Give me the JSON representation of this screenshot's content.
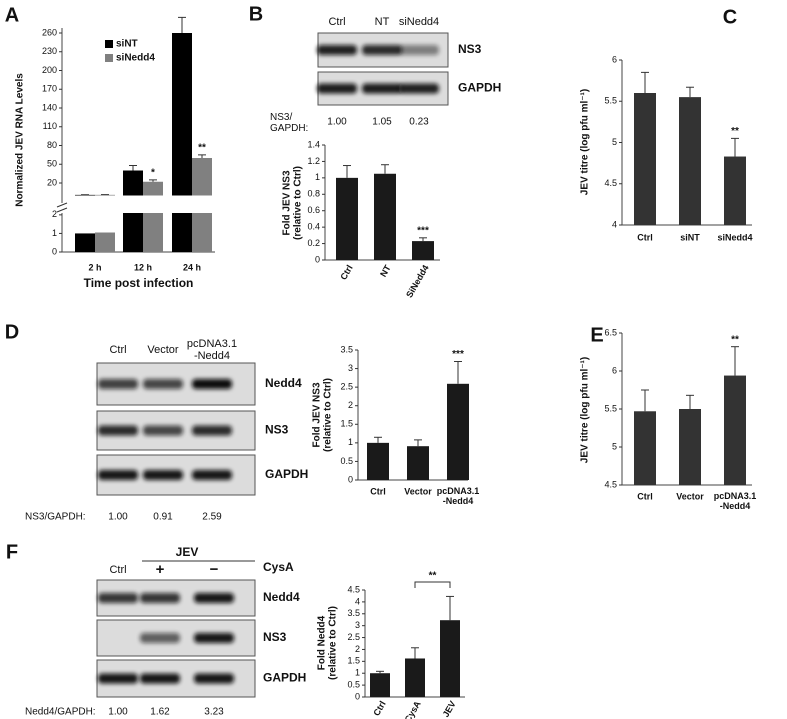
{
  "chart_data": [
    {
      "type": "bar",
      "panel": "A",
      "ylabel": "Normalized JEV RNA Levels",
      "xlabel": "Time post infection",
      "categories": [
        "2 h",
        "12 h",
        "24 h"
      ],
      "series": [
        {
          "name": "siNT",
          "color": "#000000",
          "values": [
            1.0,
            40,
            260
          ],
          "errors": [
            0.25,
            8,
            25
          ],
          "annotations": [
            null,
            null,
            null
          ]
        },
        {
          "name": "siNedd4",
          "color": "#808080",
          "values": [
            1.05,
            22,
            60
          ],
          "errors": [
            0.35,
            3,
            5
          ],
          "annotations": [
            null,
            "*",
            "**"
          ]
        }
      ],
      "broken_axis": {
        "lower": {
          "ylim": [
            0,
            2.1
          ],
          "yticks": [
            0,
            1,
            2
          ]
        },
        "upper": {
          "ylim": [
            -12,
            268
          ],
          "yticks": [
            20,
            50,
            80,
            110,
            140,
            170,
            200,
            230,
            260
          ]
        }
      }
    },
    {
      "type": "bar",
      "ylabel": "Fold JEV NS3\n(relative to Ctrl)",
      "categories": [
        "Ctrl",
        "NT",
        "SiNedd4"
      ],
      "values": [
        1.0,
        1.05,
        0.23
      ],
      "errors": [
        0.15,
        0.11,
        0.04
      ],
      "annotations": [
        null,
        null,
        "***"
      ],
      "color": "#1a1a1a",
      "ylim": [
        0,
        1.4
      ],
      "yticks": [
        0,
        0.2,
        0.4,
        0.6,
        0.8,
        1,
        1.2,
        1.4
      ]
    },
    {
      "type": "bar",
      "panel": "C",
      "ylabel": "JEV titre (log pfu ml⁻¹)",
      "categories": [
        "Ctrl",
        "siNT",
        "siNedd4"
      ],
      "values": [
        5.6,
        5.55,
        4.83
      ],
      "errors": [
        0.25,
        0.12,
        0.22
      ],
      "annotations": [
        null,
        null,
        "**"
      ],
      "color": "#333333",
      "ylim": [
        4,
        6
      ],
      "yticks": [
        4,
        4.5,
        5,
        5.5,
        6
      ]
    },
    {
      "type": "bar",
      "ylabel": "Fold JEV NS3\n(relative to Ctrl)",
      "categories": [
        "Ctrl",
        "Vector",
        "pcDNA3.1\n-Nedd4"
      ],
      "values": [
        1.0,
        0.91,
        2.59
      ],
      "errors": [
        0.15,
        0.17,
        0.6
      ],
      "annotations": [
        null,
        null,
        "***"
      ],
      "color": "#1a1a1a",
      "ylim": [
        0,
        3.5
      ],
      "yticks": [
        0,
        0.5,
        1,
        1.5,
        2,
        2.5,
        3,
        3.5
      ]
    },
    {
      "type": "bar",
      "panel": "E",
      "ylabel": "JEV titre (log pfu ml⁻¹)",
      "categories": [
        "Ctrl",
        "Vector",
        "pcDNA3.1\n-Nedd4"
      ],
      "values": [
        5.47,
        5.5,
        5.94
      ],
      "errors": [
        0.28,
        0.18,
        0.38
      ],
      "annotations": [
        null,
        null,
        "**"
      ],
      "color": "#333333",
      "ylim": [
        4.5,
        6.5
      ],
      "yticks": [
        4.5,
        5,
        5.5,
        6,
        6.5
      ]
    },
    {
      "type": "bar",
      "ylabel": "Fold Nedd4\n(relative to Ctrl)",
      "categories": [
        "Ctrl",
        "JEV+CysA",
        "JEV"
      ],
      "values": [
        1.0,
        1.62,
        3.23
      ],
      "errors": [
        0.08,
        0.45,
        1.0
      ],
      "annotations": [
        null,
        null,
        null
      ],
      "bracket_label": "**",
      "color": "#1a1a1a",
      "ylim": [
        0,
        4.5
      ],
      "yticks": [
        0,
        0.5,
        1,
        1.5,
        2,
        2.5,
        3,
        3.5,
        4,
        4.5
      ]
    }
  ],
  "blots": [
    {
      "panel": "B",
      "lanes": [
        "Ctrl",
        "NT",
        "siNedd4"
      ],
      "rows": [
        "NS3",
        "GAPDH"
      ],
      "ratio_label": "NS3/\nGAPDH:",
      "ratios": [
        "1.00",
        "1.05",
        "0.23"
      ]
    },
    {
      "panel": "D",
      "lanes": [
        "Ctrl",
        "Vector",
        "pcDNA3.1\n-Nedd4"
      ],
      "rows": [
        "Nedd4",
        "NS3",
        "GAPDH"
      ],
      "ratio_label": "NS3/GAPDH:",
      "ratios": [
        "1.00",
        "0.91",
        "2.59"
      ]
    },
    {
      "panel": "F",
      "group_label": "JEV",
      "treatment_label": "CysA",
      "lanes": [
        "Ctrl",
        "+",
        "−"
      ],
      "rows": [
        "Nedd4",
        "NS3",
        "GAPDH"
      ],
      "ratio_label": "Nedd4/GAPDH:",
      "ratios": [
        "1.00",
        "1.62",
        "3.23"
      ]
    }
  ]
}
